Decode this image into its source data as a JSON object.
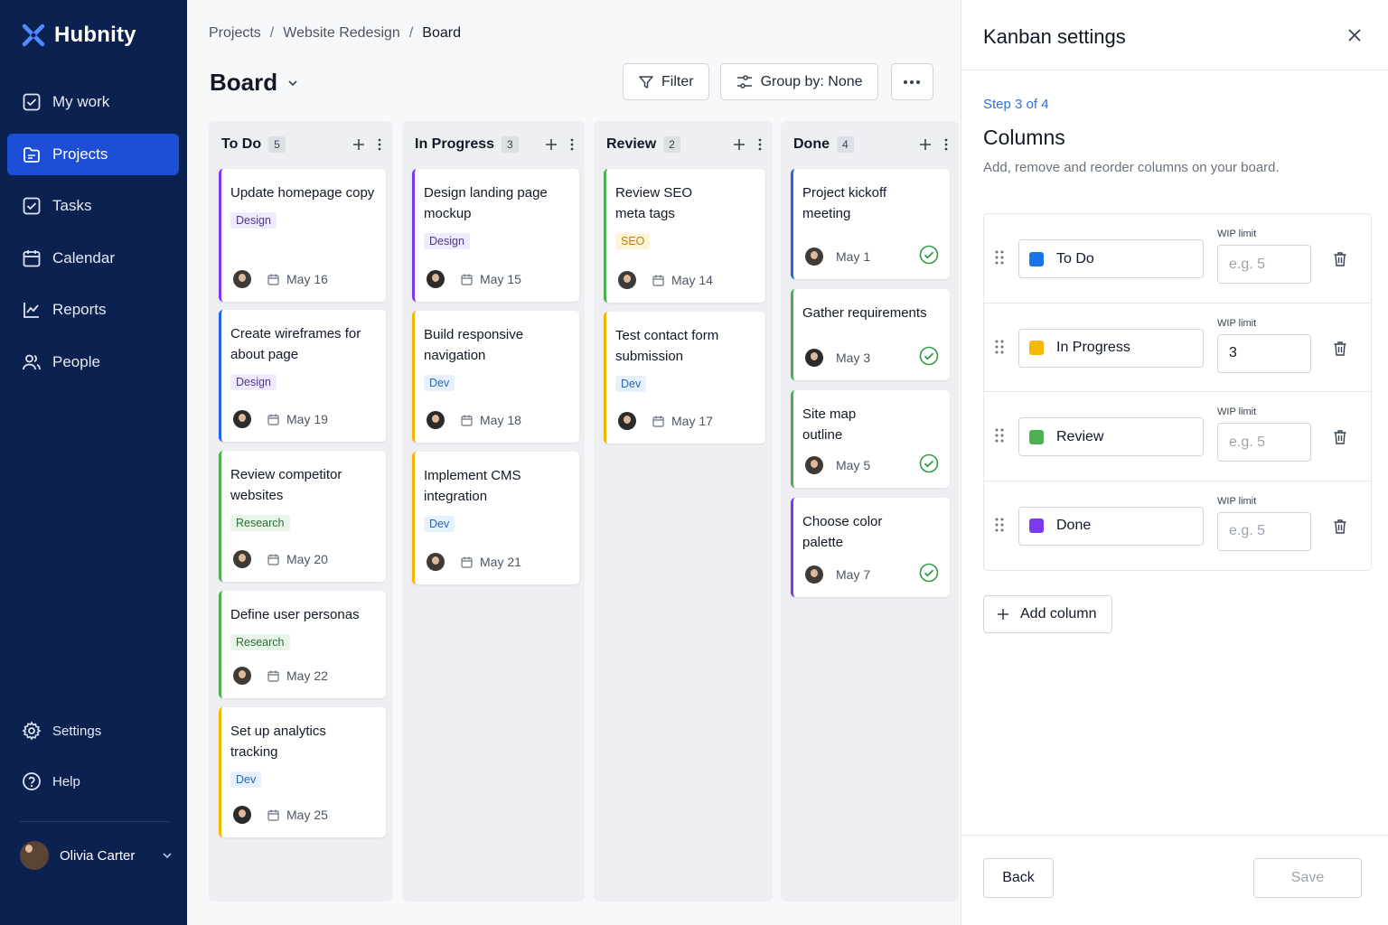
{
  "app": {
    "name": "Hubnity",
    "logo_icon": "hubnity-logo-icon"
  },
  "sidebar": {
    "items": [
      {
        "label": "My work",
        "icon": "check-square-icon",
        "active": false
      },
      {
        "label": "Projects",
        "icon": "folder-icon",
        "active": true
      },
      {
        "label": "Tasks",
        "icon": "check-square-icon",
        "active": false
      },
      {
        "label": "Calendar",
        "icon": "calendar-icon",
        "active": false
      },
      {
        "label": "Reports",
        "icon": "chart-line-icon",
        "active": false
      },
      {
        "label": "People",
        "icon": "people-icon",
        "active": false
      }
    ],
    "bottom": [
      {
        "label": "Settings",
        "icon": "gear-icon"
      },
      {
        "label": "Help",
        "icon": "help-icon"
      }
    ],
    "user": {
      "name": "Olivia Carter"
    }
  },
  "breadcrumb": [
    "Projects",
    "Website Redesign",
    "Board"
  ],
  "board": {
    "title": "Board",
    "toolbar": {
      "filter": "Filter",
      "group_by": "Group by: None"
    },
    "columns": [
      {
        "name": "To Do",
        "count": "5",
        "cards": [
          {
            "title": "Update homepage copy",
            "tag": "Design",
            "date": "May 16",
            "accent": "#7c3aed"
          },
          {
            "title": "Create wireframes for about page",
            "tag": "Design",
            "date": "May 19",
            "accent": "#2563eb"
          },
          {
            "title": "Review competitor websites",
            "tag": "Research",
            "date": "May 20",
            "accent": "#4caf50"
          },
          {
            "title": "Define user personas",
            "tag": "Research",
            "date": "May 22",
            "accent": "#4caf50"
          },
          {
            "title": "Set up analytics tracking",
            "tag": "Dev",
            "date": "May 25",
            "accent": "#f5b800"
          }
        ]
      },
      {
        "name": "In Progress",
        "count": "3",
        "cards": [
          {
            "title": "Design landing page mockup",
            "tag": "Design",
            "date": "May 15",
            "accent": "#7c3aed"
          },
          {
            "title": "Build responsive navigation",
            "tag": "Dev",
            "date": "May 18",
            "accent": "#f5b800"
          },
          {
            "title": "Implement CMS integration",
            "tag": "Dev",
            "date": "May 21",
            "accent": "#f5b800"
          }
        ]
      },
      {
        "name": "Review",
        "count": "2",
        "cards": [
          {
            "title": "Review SEO meta tags",
            "tag": "SEO",
            "date": "May 14",
            "accent": "#4caf50"
          },
          {
            "title": "Test contact form submission",
            "tag": "Dev",
            "date": "May 17",
            "accent": "#f5b800"
          }
        ]
      },
      {
        "name": "Done",
        "count": "4",
        "cards": [
          {
            "title": "Project kickoff meeting",
            "date": "May 1",
            "accent": "#2563eb"
          },
          {
            "title": "Gather requirements",
            "date": "May 3",
            "accent": "#4caf50"
          },
          {
            "title": "Site map outline",
            "date": "May 5",
            "accent": "#4caf50"
          },
          {
            "title": "Choose color palette",
            "date": "May 7",
            "accent": "#7c3aed"
          }
        ]
      }
    ]
  },
  "panel": {
    "title": "Kanban settings",
    "step": "Step 3 of 4",
    "section_title": "Columns",
    "section_desc": "Add, remove and reorder columns on your board.",
    "wip_label": "WIP limit",
    "wip_placeholder": "e.g. 5",
    "columns": [
      {
        "name": "To Do",
        "color": "#1a73e8",
        "wip": ""
      },
      {
        "name": "In Progress",
        "color": "#f5b800",
        "wip": "3"
      },
      {
        "name": "Review",
        "color": "#4caf50",
        "wip": ""
      },
      {
        "name": "Done",
        "color": "#7c3aed",
        "wip": ""
      }
    ],
    "add_column": "Add column",
    "back": "Back",
    "save": "Save"
  }
}
